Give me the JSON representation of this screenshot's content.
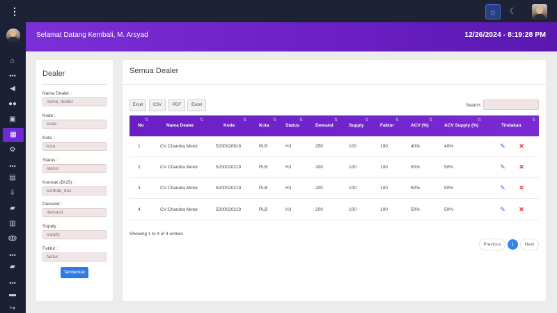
{
  "header": {
    "welcome": "Selamat Datang Kembali, M. Arsyad",
    "datetime": "12/26/2024 - 8:19:28 PM"
  },
  "form": {
    "title": "Dealer",
    "fields": [
      {
        "label": "Nama Dealer :",
        "placeholder": "nama_dealer"
      },
      {
        "label": "Kode :",
        "placeholder": "kode"
      },
      {
        "label": "Kota :",
        "placeholder": "kota"
      },
      {
        "label": "Status :",
        "placeholder": "status"
      },
      {
        "label": "Kontrak (DUS) :",
        "placeholder": "kontrak_dus"
      },
      {
        "label": "Demand :",
        "placeholder": "demand"
      },
      {
        "label": "Supply :",
        "placeholder": "supply"
      },
      {
        "label": "Faktur :",
        "placeholder": "faktur"
      }
    ],
    "submit_label": "Tambahkan"
  },
  "table": {
    "title": "Semua Dealer",
    "export_buttons": [
      "Excel",
      "CSV",
      "PDF",
      "Excel"
    ],
    "search_label": "Search:",
    "columns": [
      "No",
      "Nama Dealer",
      "Kode",
      "Kota",
      "Status",
      "Demand",
      "Supply",
      "Faktur",
      "ACV (%)",
      "ACV Supply (%)",
      "Tindakan"
    ],
    "rows": [
      [
        "1",
        "CV Chandra Motor",
        "5200020919",
        "PLB",
        "H3",
        "250",
        "100",
        "100",
        "40%",
        "40%"
      ],
      [
        "2",
        "CV Chandra Motor",
        "5200020219",
        "PLB",
        "H3",
        "200",
        "100",
        "100",
        "50%",
        "50%"
      ],
      [
        "3",
        "CV Chandra Motor",
        "5200020219",
        "PLB",
        "H3",
        "200",
        "100",
        "100",
        "50%",
        "50%"
      ],
      [
        "4",
        "CV Chandra Motor",
        "5200020219",
        "PLB",
        "H3",
        "200",
        "100",
        "100",
        "50%",
        "50%"
      ]
    ],
    "info": "Showing 1 to 4 of 4 entries",
    "pagination": {
      "previous": "Previous",
      "current": "1",
      "next": "Next"
    }
  },
  "icons": {
    "menu": "more-vertical-icon",
    "theme_light": "sun-icon",
    "theme_dark": "moon-icon",
    "edit": "edit-icon",
    "delete": "close-icon"
  },
  "colors": {
    "accent": "#6f2bd3",
    "header_purple": "#7b2fd6",
    "primary_button": "#2f7be6",
    "delete_red": "#d63030"
  }
}
